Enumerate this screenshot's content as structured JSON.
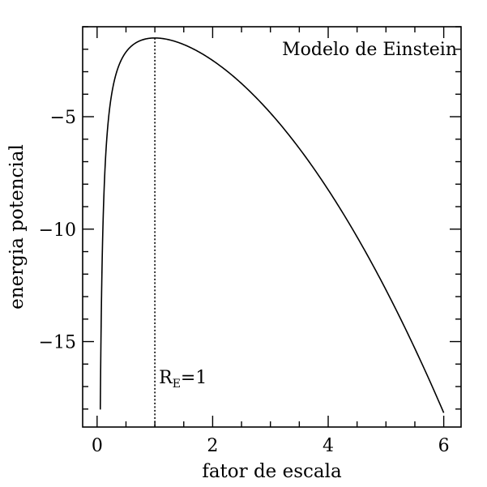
{
  "chart_data": {
    "type": "line",
    "title": "",
    "annotation": "Modelo de Einstein",
    "xlabel": "fator de escala",
    "ylabel": "energia potencial",
    "xlim": [
      -0.25,
      6.3
    ],
    "ylim": [
      -18.8,
      -1.0
    ],
    "x_major_ticks": [
      0,
      2,
      4,
      6
    ],
    "x_tick_labels": [
      "0",
      "2",
      "4",
      "6"
    ],
    "x_minor_step": 0.5,
    "y_major_ticks": [
      -15,
      -10,
      -5
    ],
    "y_tick_labels": [
      "−15",
      "−10",
      "−5"
    ],
    "y_minor_step": 1,
    "series": [
      {
        "formula": "-(1/x + x^2/2)",
        "x_range": [
          0.0555,
          6.0
        ],
        "x": [
          0.0555,
          0.1,
          0.2,
          0.5,
          1.0,
          1.5,
          2.0,
          3.0,
          4.0,
          5.0,
          6.0
        ],
        "y": [
          -18.02,
          -10.01,
          -5.02,
          -2.13,
          -1.5,
          -1.79,
          -2.5,
          -4.83,
          -8.25,
          -12.7,
          -18.17
        ]
      }
    ],
    "vertical_marker": {
      "x": 1.0,
      "label_main": "R",
      "label_sub": "E",
      "label_rest": "=1"
    },
    "grid": false,
    "legend": "none"
  }
}
